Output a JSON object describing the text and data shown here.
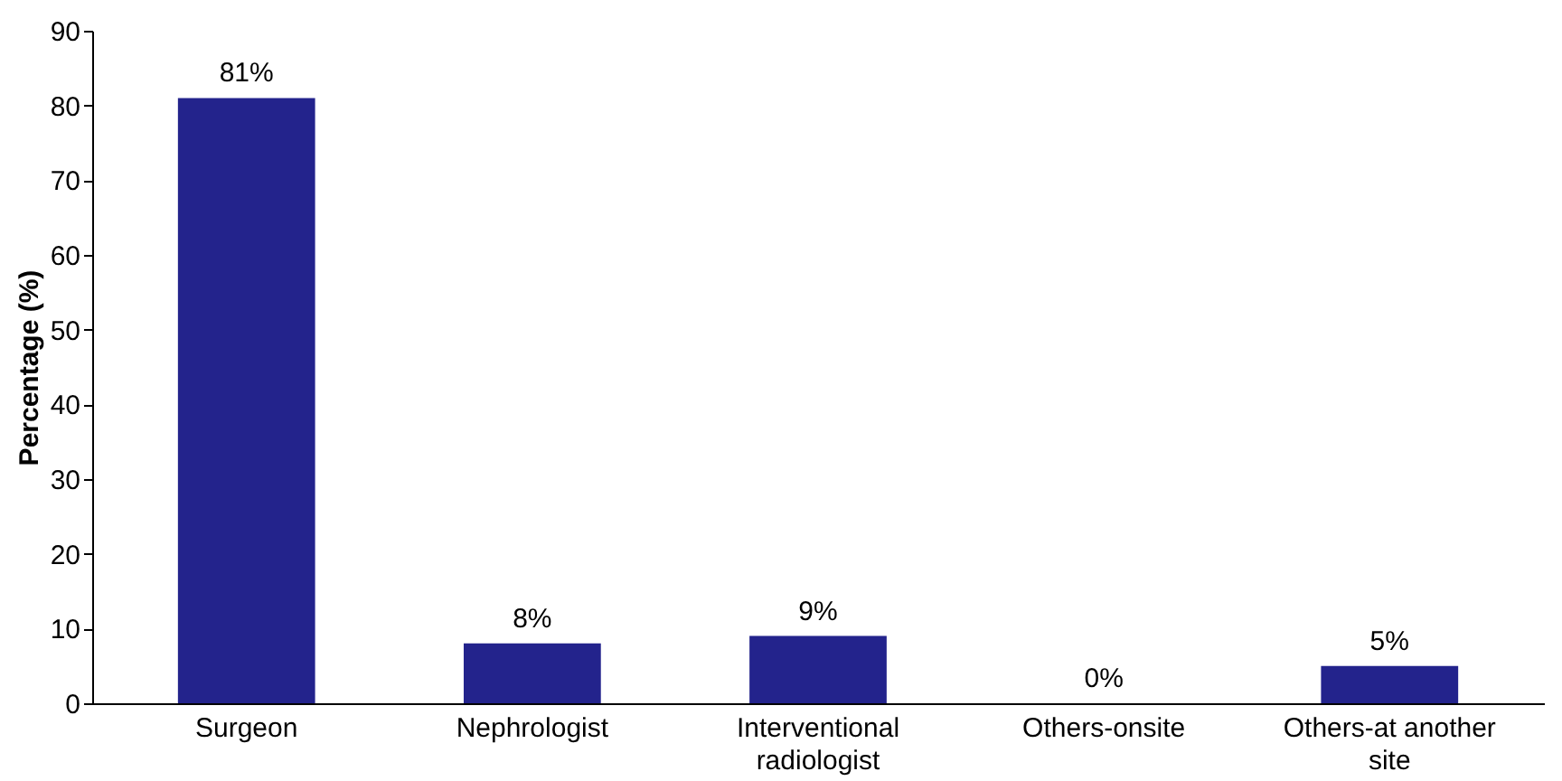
{
  "chart_data": {
    "type": "bar",
    "ylabel": "Percentage (%)",
    "categories": [
      "Surgeon",
      "Nephrologist",
      "Interventional radiologist",
      "Others-onsite",
      "Others-at another site"
    ],
    "values": [
      81,
      8,
      9,
      0,
      5
    ],
    "value_labels": [
      "81%",
      "8%",
      "9%",
      "0%",
      "5%"
    ],
    "color": "#23238c",
    "ylim": [
      0,
      90
    ],
    "yticks": [
      0,
      10,
      20,
      30,
      40,
      50,
      60,
      70,
      80,
      90
    ],
    "grid": false
  }
}
